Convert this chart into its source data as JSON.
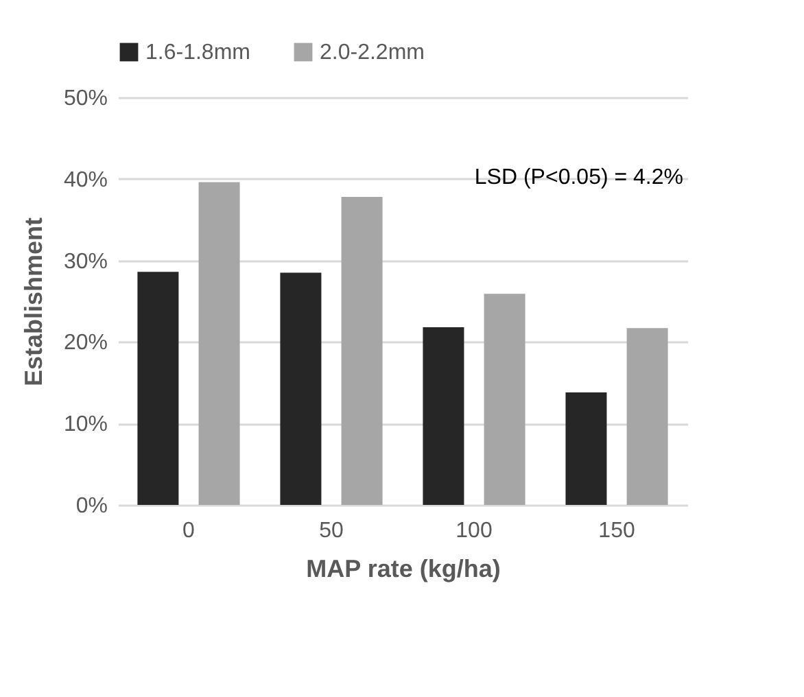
{
  "chart_data": {
    "type": "bar",
    "xlabel": "MAP rate (kg/ha)",
    "ylabel": "Establishment",
    "categories": [
      "0",
      "50",
      "100",
      "150"
    ],
    "series": [
      {
        "name": "1.6-1.8mm",
        "color": "#262626",
        "values": [
          28.6,
          28.5,
          21.8,
          13.8
        ]
      },
      {
        "name": "2.0-2.2mm",
        "color": "#a6a6a6",
        "values": [
          39.6,
          37.8,
          25.9,
          21.7
        ]
      }
    ],
    "ylim": [
      0,
      50
    ],
    "yticks": [
      {
        "value": 0,
        "label": "0%"
      },
      {
        "value": 10,
        "label": "10%"
      },
      {
        "value": 20,
        "label": "20%"
      },
      {
        "value": 30,
        "label": "30%"
      },
      {
        "value": 40,
        "label": "40%"
      },
      {
        "value": 50,
        "label": "50%"
      }
    ],
    "annotations": [
      "LSD (P<0.05) = 4.2%"
    ],
    "grid": "y",
    "legend": "top"
  }
}
